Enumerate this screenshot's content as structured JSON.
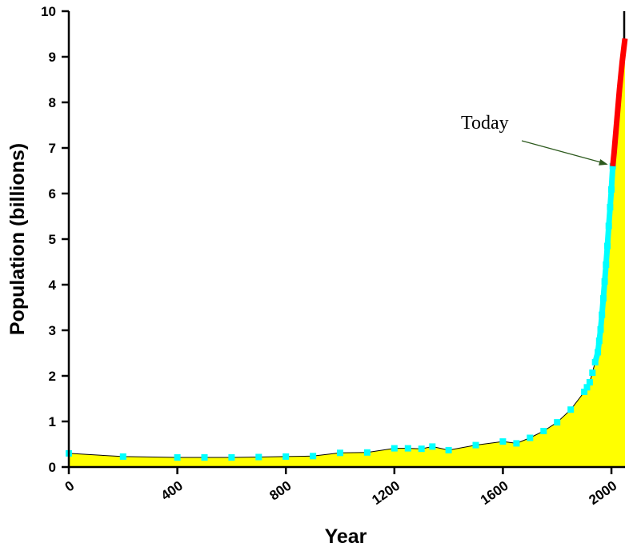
{
  "chart_data": {
    "type": "area",
    "title": "",
    "xlabel": "Year",
    "ylabel": "Population (billions)",
    "xlim": [
      0,
      2050
    ],
    "ylim": [
      0,
      10
    ],
    "x_ticks": [
      0,
      400,
      800,
      1200,
      1600,
      2000
    ],
    "y_ticks": [
      0,
      1,
      2,
      3,
      4,
      5,
      6,
      7,
      8,
      9,
      10
    ],
    "grid": false,
    "colors": {
      "fill": "#ffff00",
      "outline": "#000000",
      "marker": "#00ffff",
      "projection": "#ff0000",
      "annotation_arrow": "#2d5a1e"
    },
    "series": [
      {
        "x": [
          0,
          200,
          400,
          500,
          600,
          700,
          800,
          900,
          1000,
          1100,
          1200,
          1250,
          1300,
          1340,
          1400,
          1500,
          1600,
          1650,
          1700,
          1750,
          1800,
          1850,
          1900,
          1910,
          1920,
          1930,
          1940,
          1950,
          1955,
          1960,
          1965,
          1970,
          1975,
          1980,
          1985,
          1990,
          1995,
          2000,
          2005
        ],
        "y": [
          0.3,
          0.23,
          0.21,
          0.21,
          0.21,
          0.22,
          0.23,
          0.24,
          0.31,
          0.32,
          0.41,
          0.41,
          0.4,
          0.45,
          0.37,
          0.48,
          0.56,
          0.52,
          0.64,
          0.79,
          0.98,
          1.26,
          1.65,
          1.75,
          1.86,
          2.07,
          2.3,
          2.52,
          2.77,
          3.02,
          3.34,
          3.7,
          4.07,
          4.44,
          4.85,
          5.29,
          5.7,
          6.09,
          6.6
        ]
      },
      {
        "x": [
          2005,
          2010,
          2020,
          2030,
          2040,
          2050
        ],
        "y": [
          6.6,
          6.9,
          7.6,
          8.3,
          8.9,
          9.4
        ]
      }
    ],
    "annotations": [
      {
        "text": "Today",
        "x": 2005,
        "y": 6.6
      }
    ]
  }
}
